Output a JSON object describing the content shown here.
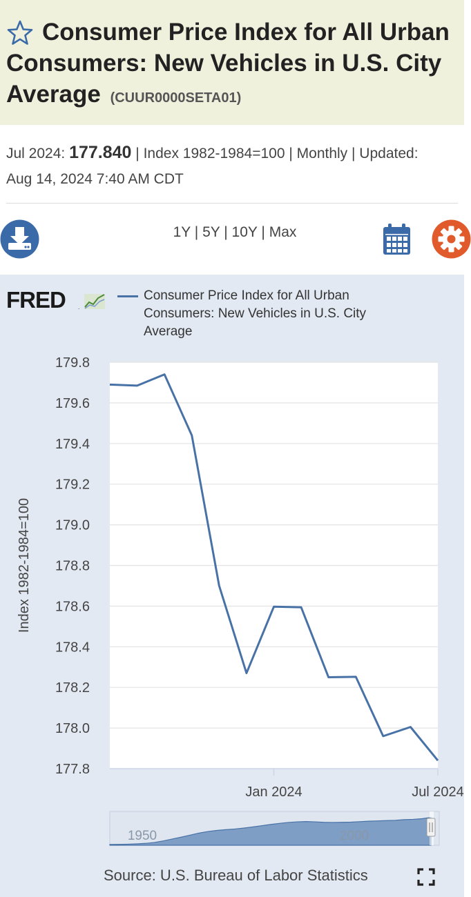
{
  "header": {
    "title": "Consumer Price Index for All Urban Consumers: New Vehicles in U.S. City Average",
    "series_id": "(CUUR0000SETA01)"
  },
  "meta": {
    "obs_label": "Jul 2024:",
    "obs_value": "177.840",
    "line1_rest": "| Index 1982-1984=100 | Monthly | Updated:",
    "line2": "Aug 14, 2024 7:40 AM CDT"
  },
  "toolbar": {
    "ranges": [
      "1Y",
      "5Y",
      "10Y",
      "Max"
    ],
    "separator": "|"
  },
  "colors": {
    "series": "#4872a6",
    "header_bg": "#f0f1dd",
    "panel_bg": "#e2e9f2",
    "icon_blue": "#3a6aa8",
    "icon_orange": "#e05a2b"
  },
  "chart": {
    "legend": "Consumer Price Index for All Urban Consumers: New Vehicles in U.S. City Average",
    "source": "Source: U.S. Bureau of Labor Statistics"
  },
  "chart_data": {
    "type": "line",
    "title": "",
    "xlabel": "",
    "ylabel": "Index 1982-1984=100",
    "x": [
      "2023-07",
      "2023-08",
      "2023-09",
      "2023-10",
      "2023-11",
      "2023-12",
      "2024-01",
      "2024-02",
      "2024-03",
      "2024-04",
      "2024-05",
      "2024-06",
      "2024-07"
    ],
    "series": [
      {
        "name": "Consumer Price Index for All Urban Consumers: New Vehicles in U.S. City Average",
        "values": [
          179.69,
          179.685,
          179.74,
          179.44,
          178.7,
          178.27,
          178.597,
          178.594,
          178.25,
          178.252,
          177.96,
          178.005,
          177.84
        ]
      }
    ],
    "ylim": [
      177.8,
      179.8
    ],
    "yticks": [
      "179.8",
      "179.6",
      "179.4",
      "179.2",
      "179.0",
      "178.8",
      "178.6",
      "178.4",
      "178.2",
      "178.0",
      "177.8"
    ],
    "xticks": [
      {
        "at": "2024-01",
        "label": "Jan 2024"
      },
      {
        "at": "2024-07",
        "label": "Jul 2024"
      }
    ],
    "grid": true,
    "legend_position": "top",
    "navigator": {
      "labels": [
        "1950",
        "2000"
      ],
      "values": [
        5,
        5.5,
        7,
        9,
        12,
        18,
        28,
        40,
        52,
        65,
        78,
        88,
        95,
        100,
        104,
        110,
        117,
        125,
        133,
        140,
        146,
        150,
        152,
        150,
        147,
        146,
        147,
        148,
        151,
        154,
        156,
        158,
        160,
        164,
        166,
        170,
        178
      ]
    }
  }
}
